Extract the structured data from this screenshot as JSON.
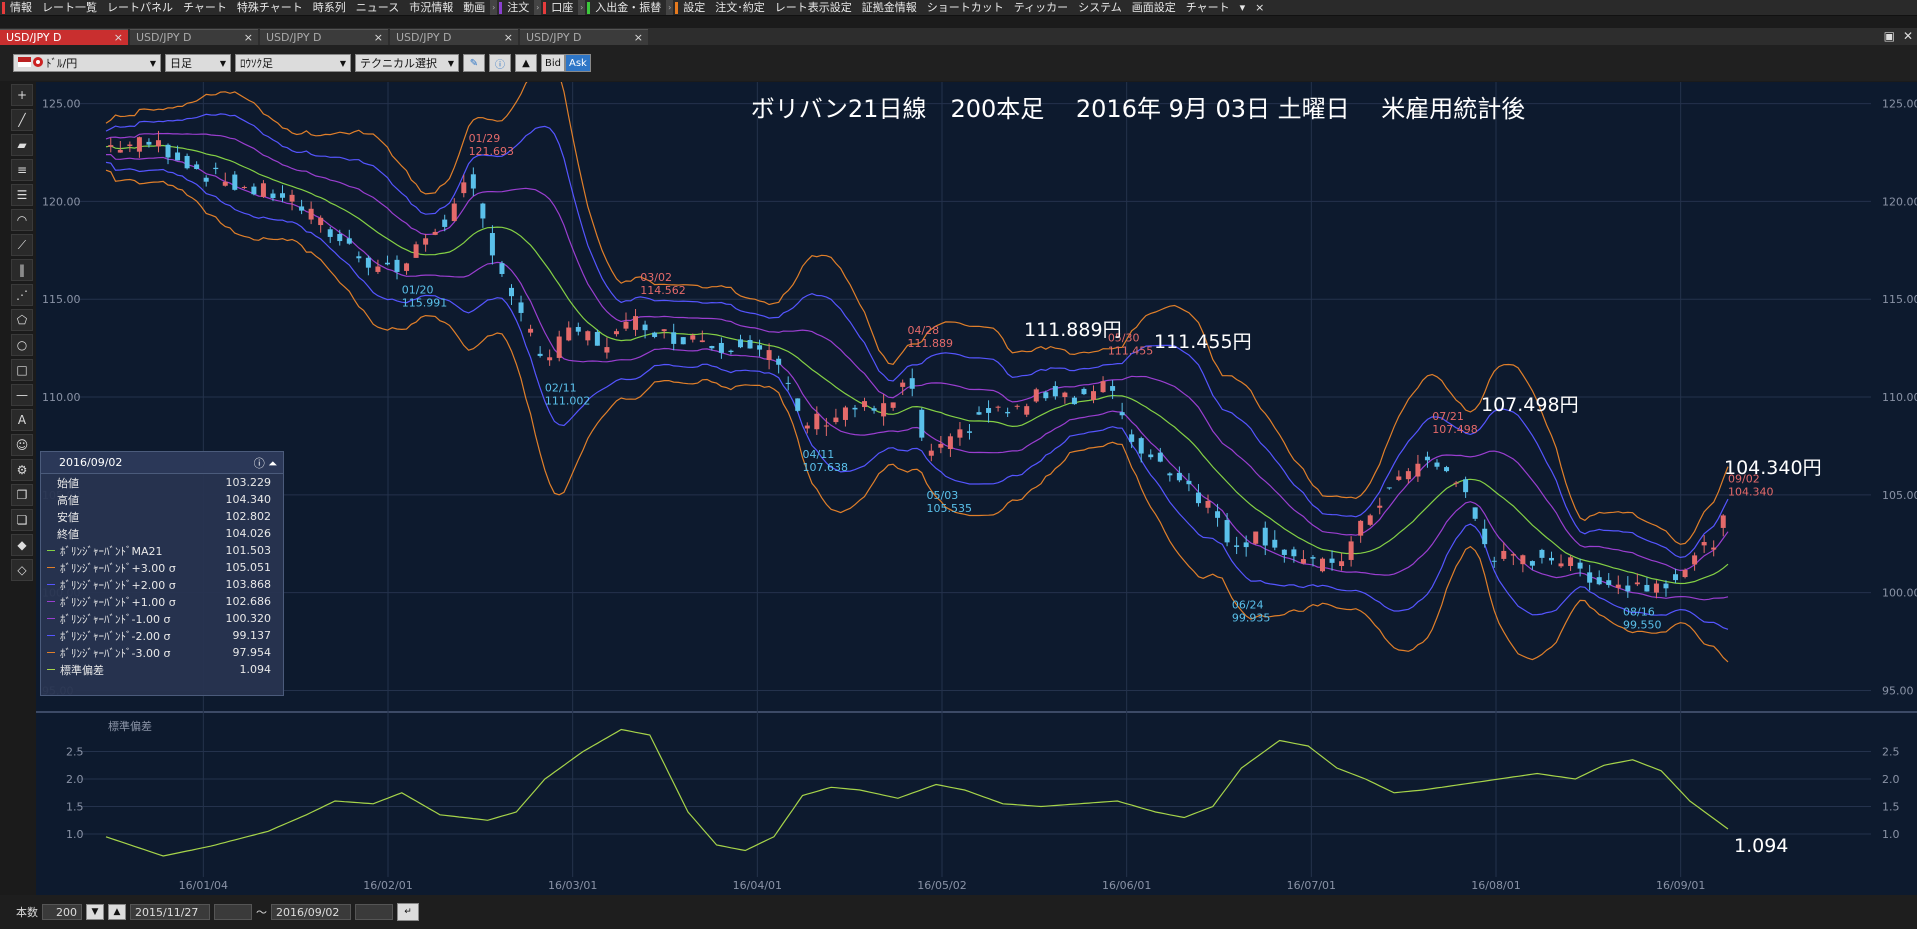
{
  "menu": {
    "items": [
      {
        "label": "情報",
        "color": "#e63c3c"
      },
      {
        "label": "レート一覧"
      },
      {
        "label": "レートパネル"
      },
      {
        "label": "チャート"
      },
      {
        "label": "特殊チャート"
      },
      {
        "label": "時系列"
      },
      {
        "label": "ニュース"
      },
      {
        "label": "市況情報"
      },
      {
        "label": "動画"
      },
      {
        "label": "注文",
        "color": "#8a40d0",
        "sep_before": true
      },
      {
        "label": "口座",
        "color": "#e63c3c",
        "sep_before": true
      },
      {
        "label": "入出金・振替",
        "color": "#3cc83c",
        "sep_before": true
      },
      {
        "label": "設定",
        "color": "#e67a1e",
        "sep_before": true
      },
      {
        "label": "注文･約定"
      },
      {
        "label": "レート表示設定"
      },
      {
        "label": "証拠金情報"
      },
      {
        "label": "ショートカット"
      },
      {
        "label": "ティッカー"
      },
      {
        "label": "システム"
      },
      {
        "label": "画面設定"
      },
      {
        "label": "チャート"
      }
    ],
    "extra_arrow": "▾",
    "close": "×"
  },
  "tabs": [
    {
      "label": "USD/JPY D",
      "active": true,
      "close": "×"
    },
    {
      "label": "USD/JPY D",
      "active": false,
      "close": "×"
    },
    {
      "label": "USD/JPY D",
      "active": false,
      "close": "×"
    },
    {
      "label": "USD/JPY D",
      "active": false,
      "close": "×"
    },
    {
      "label": "USD/JPY D",
      "active": false,
      "close": "×"
    }
  ],
  "window_controls": {
    "restore": "▣",
    "close": "✕"
  },
  "toolbar": {
    "pair": "ﾄﾞﾙ/円",
    "period": "日足",
    "chart_type": "ﾛｳｿｸ足",
    "technical": "テクニカル選択",
    "bid": "Bid",
    "ask": "Ask"
  },
  "chart": {
    "title": "ボリバン21日線　200本足　 2016年 9月 03日 土曜日　 米雇用統計後",
    "y_ticks": [
      "125.00",
      "120.00",
      "115.00",
      "110.00",
      "105.00",
      "100.00",
      "95.00"
    ],
    "x_ticks": [
      "16/01/04",
      "16/02/01",
      "16/03/01",
      "16/04/01",
      "16/05/02",
      "16/06/01",
      "16/07/01",
      "16/08/01",
      "16/09/01"
    ],
    "sub_label": "標準偏差",
    "sub_y_ticks": [
      "2.5",
      "2.0",
      "1.5",
      "1.0"
    ],
    "big_labels": [
      "111.889円",
      "111.455円",
      "107.498円",
      "104.340円",
      "1.094"
    ],
    "annotations": [
      {
        "date": "01/29",
        "price": "121.693",
        "kind": "high"
      },
      {
        "date": "01/20",
        "price": "115.991",
        "kind": "low"
      },
      {
        "date": "03/02",
        "price": "114.562",
        "kind": "high"
      },
      {
        "date": "02/11",
        "price": "111.002",
        "kind": "low"
      },
      {
        "date": "04/28",
        "price": "111.889",
        "kind": "high"
      },
      {
        "date": "04/11",
        "price": "107.638",
        "kind": "low"
      },
      {
        "date": "05/03",
        "price": "105.535",
        "kind": "low"
      },
      {
        "date": "05/30",
        "price": "111.455",
        "kind": "high"
      },
      {
        "date": "06/24",
        "price": "99.935",
        "kind": "low"
      },
      {
        "date": "07/21",
        "price": "107.498",
        "kind": "high"
      },
      {
        "date": "08/16",
        "price": "99.550",
        "kind": "low"
      },
      {
        "date": "09/02",
        "price": "104.340",
        "kind": "high"
      }
    ],
    "colors": {
      "up": "#e46a6a",
      "down": "#5ac0ea",
      "ma": "#84d045",
      "band1": "#9a3ed0",
      "band2": "#5555ff",
      "band3": "#e07f2a",
      "sd": "#a6d44a"
    }
  },
  "info_panel": {
    "date": "2016/09/02",
    "rows": [
      {
        "label": "始値",
        "value": "103.229"
      },
      {
        "label": "高値",
        "value": "104.340"
      },
      {
        "label": "安値",
        "value": "102.802"
      },
      {
        "label": "終値",
        "value": "104.026"
      },
      {
        "label": "ﾎﾞﾘﾝｼﾞｬｰﾊﾞﾝﾄﾞMA21",
        "value": "101.503",
        "color": "#84d045"
      },
      {
        "label": "ﾎﾞﾘﾝｼﾞｬｰﾊﾞﾝﾄﾞ+3.00 σ",
        "value": "105.051",
        "color": "#e07f2a"
      },
      {
        "label": "ﾎﾞﾘﾝｼﾞｬｰﾊﾞﾝﾄﾞ+2.00 σ",
        "value": "103.868",
        "color": "#5555ff"
      },
      {
        "label": "ﾎﾞﾘﾝｼﾞｬｰﾊﾞﾝﾄﾞ+1.00 σ",
        "value": "102.686",
        "color": "#9a3ed0"
      },
      {
        "label": "ﾎﾞﾘﾝｼﾞｬｰﾊﾞﾝﾄﾞ-1.00 σ",
        "value": "100.320",
        "color": "#9a3ed0"
      },
      {
        "label": "ﾎﾞﾘﾝｼﾞｬｰﾊﾞﾝﾄﾞ-2.00 σ",
        "value": "99.137",
        "color": "#5555ff"
      },
      {
        "label": "ﾎﾞﾘﾝｼﾞｬｰﾊﾞﾝﾄﾞ-3.00 σ",
        "value": "97.954",
        "color": "#e07f2a"
      },
      {
        "label": "標準偏差",
        "value": "1.094",
        "color": "#a6d44a"
      }
    ]
  },
  "status": {
    "bars_label": "本数",
    "bars_value": "200",
    "from_date": "2015/11/27",
    "tilde": "〜",
    "to_date": "2016/09/02"
  },
  "chart_data": {
    "type": "candlestick",
    "title": "ボリバン21日線　200本足　 2016年 9月 03日 土曜日　 米雇用統計後",
    "x_labels": [
      "16/01/04",
      "16/02/01",
      "16/03/01",
      "16/04/01",
      "16/05/02",
      "16/06/01",
      "16/07/01",
      "16/08/01",
      "16/09/01"
    ],
    "ylim": [
      94,
      126
    ],
    "close_path": [
      {
        "t": 0,
        "v": 122.8
      },
      {
        "t": 10,
        "v": 123.0
      },
      {
        "t": 14,
        "v": 122.5
      },
      {
        "t": 20,
        "v": 121.5
      },
      {
        "t": 30,
        "v": 120.6
      },
      {
        "t": 38,
        "v": 120.3
      },
      {
        "t": 46,
        "v": 118.6
      },
      {
        "t": 56,
        "v": 116.8
      },
      {
        "t": 62,
        "v": 116.5
      },
      {
        "t": 68,
        "v": 118.5
      },
      {
        "t": 72,
        "v": 119.2
      },
      {
        "t": 76,
        "v": 121.0
      },
      {
        "t": 82,
        "v": 117.0
      },
      {
        "t": 88,
        "v": 113.5
      },
      {
        "t": 92,
        "v": 111.8
      },
      {
        "t": 98,
        "v": 113.5
      },
      {
        "t": 104,
        "v": 112.7
      },
      {
        "t": 112,
        "v": 114.0
      },
      {
        "t": 118,
        "v": 113.0
      },
      {
        "t": 124,
        "v": 113.2
      },
      {
        "t": 128,
        "v": 112.5
      },
      {
        "t": 134,
        "v": 113.0
      },
      {
        "t": 140,
        "v": 112.0
      },
      {
        "t": 146,
        "v": 108.6
      },
      {
        "t": 152,
        "v": 109.0
      },
      {
        "t": 156,
        "v": 109.5
      },
      {
        "t": 164,
        "v": 109.3
      },
      {
        "t": 168,
        "v": 111.0
      },
      {
        "t": 172,
        "v": 107.0
      },
      {
        "t": 176,
        "v": 107.3
      },
      {
        "t": 184,
        "v": 109.3
      },
      {
        "t": 190,
        "v": 109.2
      },
      {
        "t": 198,
        "v": 110.4
      },
      {
        "t": 204,
        "v": 110.0
      },
      {
        "t": 210,
        "v": 110.8
      },
      {
        "t": 214,
        "v": 108.0
      },
      {
        "t": 220,
        "v": 106.8
      },
      {
        "t": 226,
        "v": 105.8
      },
      {
        "t": 232,
        "v": 104.2
      },
      {
        "t": 236,
        "v": 102.5
      },
      {
        "t": 242,
        "v": 103.0
      },
      {
        "t": 248,
        "v": 102.0
      },
      {
        "t": 254,
        "v": 101.2
      },
      {
        "t": 260,
        "v": 102.0
      },
      {
        "t": 266,
        "v": 104.5
      },
      {
        "t": 272,
        "v": 106.0
      },
      {
        "t": 278,
        "v": 106.8
      },
      {
        "t": 284,
        "v": 105.5
      },
      {
        "t": 290,
        "v": 102.0
      },
      {
        "t": 296,
        "v": 101.5
      },
      {
        "t": 302,
        "v": 102.0
      },
      {
        "t": 310,
        "v": 101.0
      },
      {
        "t": 318,
        "v": 100.3
      },
      {
        "t": 326,
        "v": 100.5
      },
      {
        "t": 332,
        "v": 101.5
      },
      {
        "t": 338,
        "v": 103.0
      },
      {
        "t": 340,
        "v": 104.0
      }
    ],
    "sd_path": [
      {
        "t": 0,
        "v": 0.95
      },
      {
        "t": 12,
        "v": 0.6
      },
      {
        "t": 22,
        "v": 0.78
      },
      {
        "t": 34,
        "v": 1.05
      },
      {
        "t": 42,
        "v": 1.35
      },
      {
        "t": 48,
        "v": 1.6
      },
      {
        "t": 56,
        "v": 1.55
      },
      {
        "t": 62,
        "v": 1.75
      },
      {
        "t": 70,
        "v": 1.35
      },
      {
        "t": 80,
        "v": 1.25
      },
      {
        "t": 86,
        "v": 1.4
      },
      {
        "t": 92,
        "v": 2.0
      },
      {
        "t": 100,
        "v": 2.5
      },
      {
        "t": 108,
        "v": 2.9
      },
      {
        "t": 114,
        "v": 2.8
      },
      {
        "t": 122,
        "v": 1.4
      },
      {
        "t": 128,
        "v": 0.8
      },
      {
        "t": 134,
        "v": 0.7
      },
      {
        "t": 140,
        "v": 0.95
      },
      {
        "t": 146,
        "v": 1.7
      },
      {
        "t": 152,
        "v": 1.85
      },
      {
        "t": 158,
        "v": 1.8
      },
      {
        "t": 166,
        "v": 1.65
      },
      {
        "t": 174,
        "v": 1.9
      },
      {
        "t": 180,
        "v": 1.8
      },
      {
        "t": 188,
        "v": 1.55
      },
      {
        "t": 196,
        "v": 1.5
      },
      {
        "t": 204,
        "v": 1.55
      },
      {
        "t": 212,
        "v": 1.6
      },
      {
        "t": 220,
        "v": 1.4
      },
      {
        "t": 226,
        "v": 1.3
      },
      {
        "t": 232,
        "v": 1.5
      },
      {
        "t": 238,
        "v": 2.2
      },
      {
        "t": 246,
        "v": 2.7
      },
      {
        "t": 252,
        "v": 2.6
      },
      {
        "t": 258,
        "v": 2.2
      },
      {
        "t": 264,
        "v": 2.0
      },
      {
        "t": 270,
        "v": 1.75
      },
      {
        "t": 276,
        "v": 1.8
      },
      {
        "t": 284,
        "v": 1.9
      },
      {
        "t": 292,
        "v": 2.0
      },
      {
        "t": 300,
        "v": 2.1
      },
      {
        "t": 308,
        "v": 2.0
      },
      {
        "t": 314,
        "v": 2.25
      },
      {
        "t": 320,
        "v": 2.35
      },
      {
        "t": 326,
        "v": 2.15
      },
      {
        "t": 332,
        "v": 1.6
      },
      {
        "t": 340,
        "v": 1.09
      }
    ]
  }
}
